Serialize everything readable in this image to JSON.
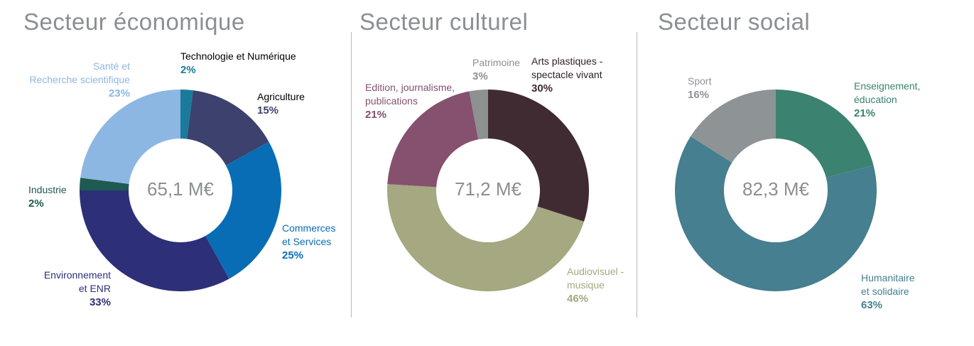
{
  "chart_data": [
    {
      "type": "pie",
      "variant": "donut",
      "title": "Secteur économique",
      "total": "65,1 M€",
      "slices": [
        {
          "key": "tech",
          "label": "Technologie et Numérique",
          "value": 2,
          "pct": "2%",
          "color": "#1a7a9c"
        },
        {
          "key": "agri",
          "label": "Agriculture",
          "value": 15,
          "pct": "15%",
          "color": "#3c416d"
        },
        {
          "key": "comm",
          "label": "Commerces et Services",
          "value": 25,
          "pct": "25%",
          "color": "#086db5"
        },
        {
          "key": "env",
          "label": "Environnement et ENR",
          "value": 33,
          "pct": "33%",
          "color": "#2d2f78"
        },
        {
          "key": "ind",
          "label": "Industrie",
          "value": 2,
          "pct": "2%",
          "color": "#1e5a52"
        },
        {
          "key": "sante",
          "label": "Santé et Recherche scientifique",
          "value": 23,
          "pct": "23%",
          "color": "#8db7e3"
        }
      ]
    },
    {
      "type": "pie",
      "variant": "donut",
      "title": "Secteur culturel",
      "total": "71,2 M€",
      "slices": [
        {
          "key": "arts",
          "label": "Arts plastiques - spectacle vivant",
          "value": 30,
          "pct": "30%",
          "color": "#402b33"
        },
        {
          "key": "audio",
          "label": "Audiovisuel - musique",
          "value": 46,
          "pct": "46%",
          "color": "#a5a880"
        },
        {
          "key": "edition",
          "label": "Edition, journalisme, publications",
          "value": 21,
          "pct": "21%",
          "color": "#86506f"
        },
        {
          "key": "patri",
          "label": "Patrimoine",
          "value": 3,
          "pct": "3%",
          "color": "#8d9191"
        }
      ]
    },
    {
      "type": "pie",
      "variant": "donut",
      "title": "Secteur social",
      "total": "82,3 M€",
      "slices": [
        {
          "key": "ens",
          "label": "Enseignement, éducation",
          "value": 21,
          "pct": "21%",
          "color": "#3c8270"
        },
        {
          "key": "hum",
          "label": "Humanitaire et solidaire",
          "value": 63,
          "pct": "63%",
          "color": "#457f90"
        },
        {
          "key": "sport",
          "label": "Sport",
          "value": 16,
          "pct": "16%",
          "color": "#8e9396"
        }
      ]
    }
  ],
  "labels": {
    "eco": {
      "tech": [
        "Technologie et Numérique"
      ],
      "agri": [
        "Agriculture"
      ],
      "comm": [
        "Commerces",
        "et Services"
      ],
      "env": [
        "Environnement",
        "et ENR"
      ],
      "ind": [
        "Industrie"
      ],
      "sante": [
        "Santé et",
        "Recherche scientifique"
      ]
    },
    "cult": {
      "arts": [
        "Arts plastiques -",
        "spectacle vivant"
      ],
      "audio": [
        "Audiovisuel -",
        "musique"
      ],
      "edition": [
        "Edition, journalisme,",
        "publications"
      ],
      "patri": [
        "Patrimoine"
      ]
    },
    "soc": {
      "ens": [
        "Enseignement,",
        "éducation"
      ],
      "hum": [
        "Humanitaire",
        "et solidaire"
      ],
      "sport": [
        "Sport"
      ]
    }
  },
  "colors": {
    "eco": {
      "tech": "#1a7a9c",
      "agri": "#3c416d",
      "comm": "#086db5",
      "env": "#2d2f78",
      "ind": "#1e5a52",
      "sante": "#8db7e3"
    },
    "cult": {
      "arts": "#402b33",
      "audio": "#a5a880",
      "edition": "#86506f",
      "patri": "#8d9191"
    },
    "soc": {
      "ens": "#3c8270",
      "hum": "#457f90",
      "sport": "#8e9396"
    }
  }
}
